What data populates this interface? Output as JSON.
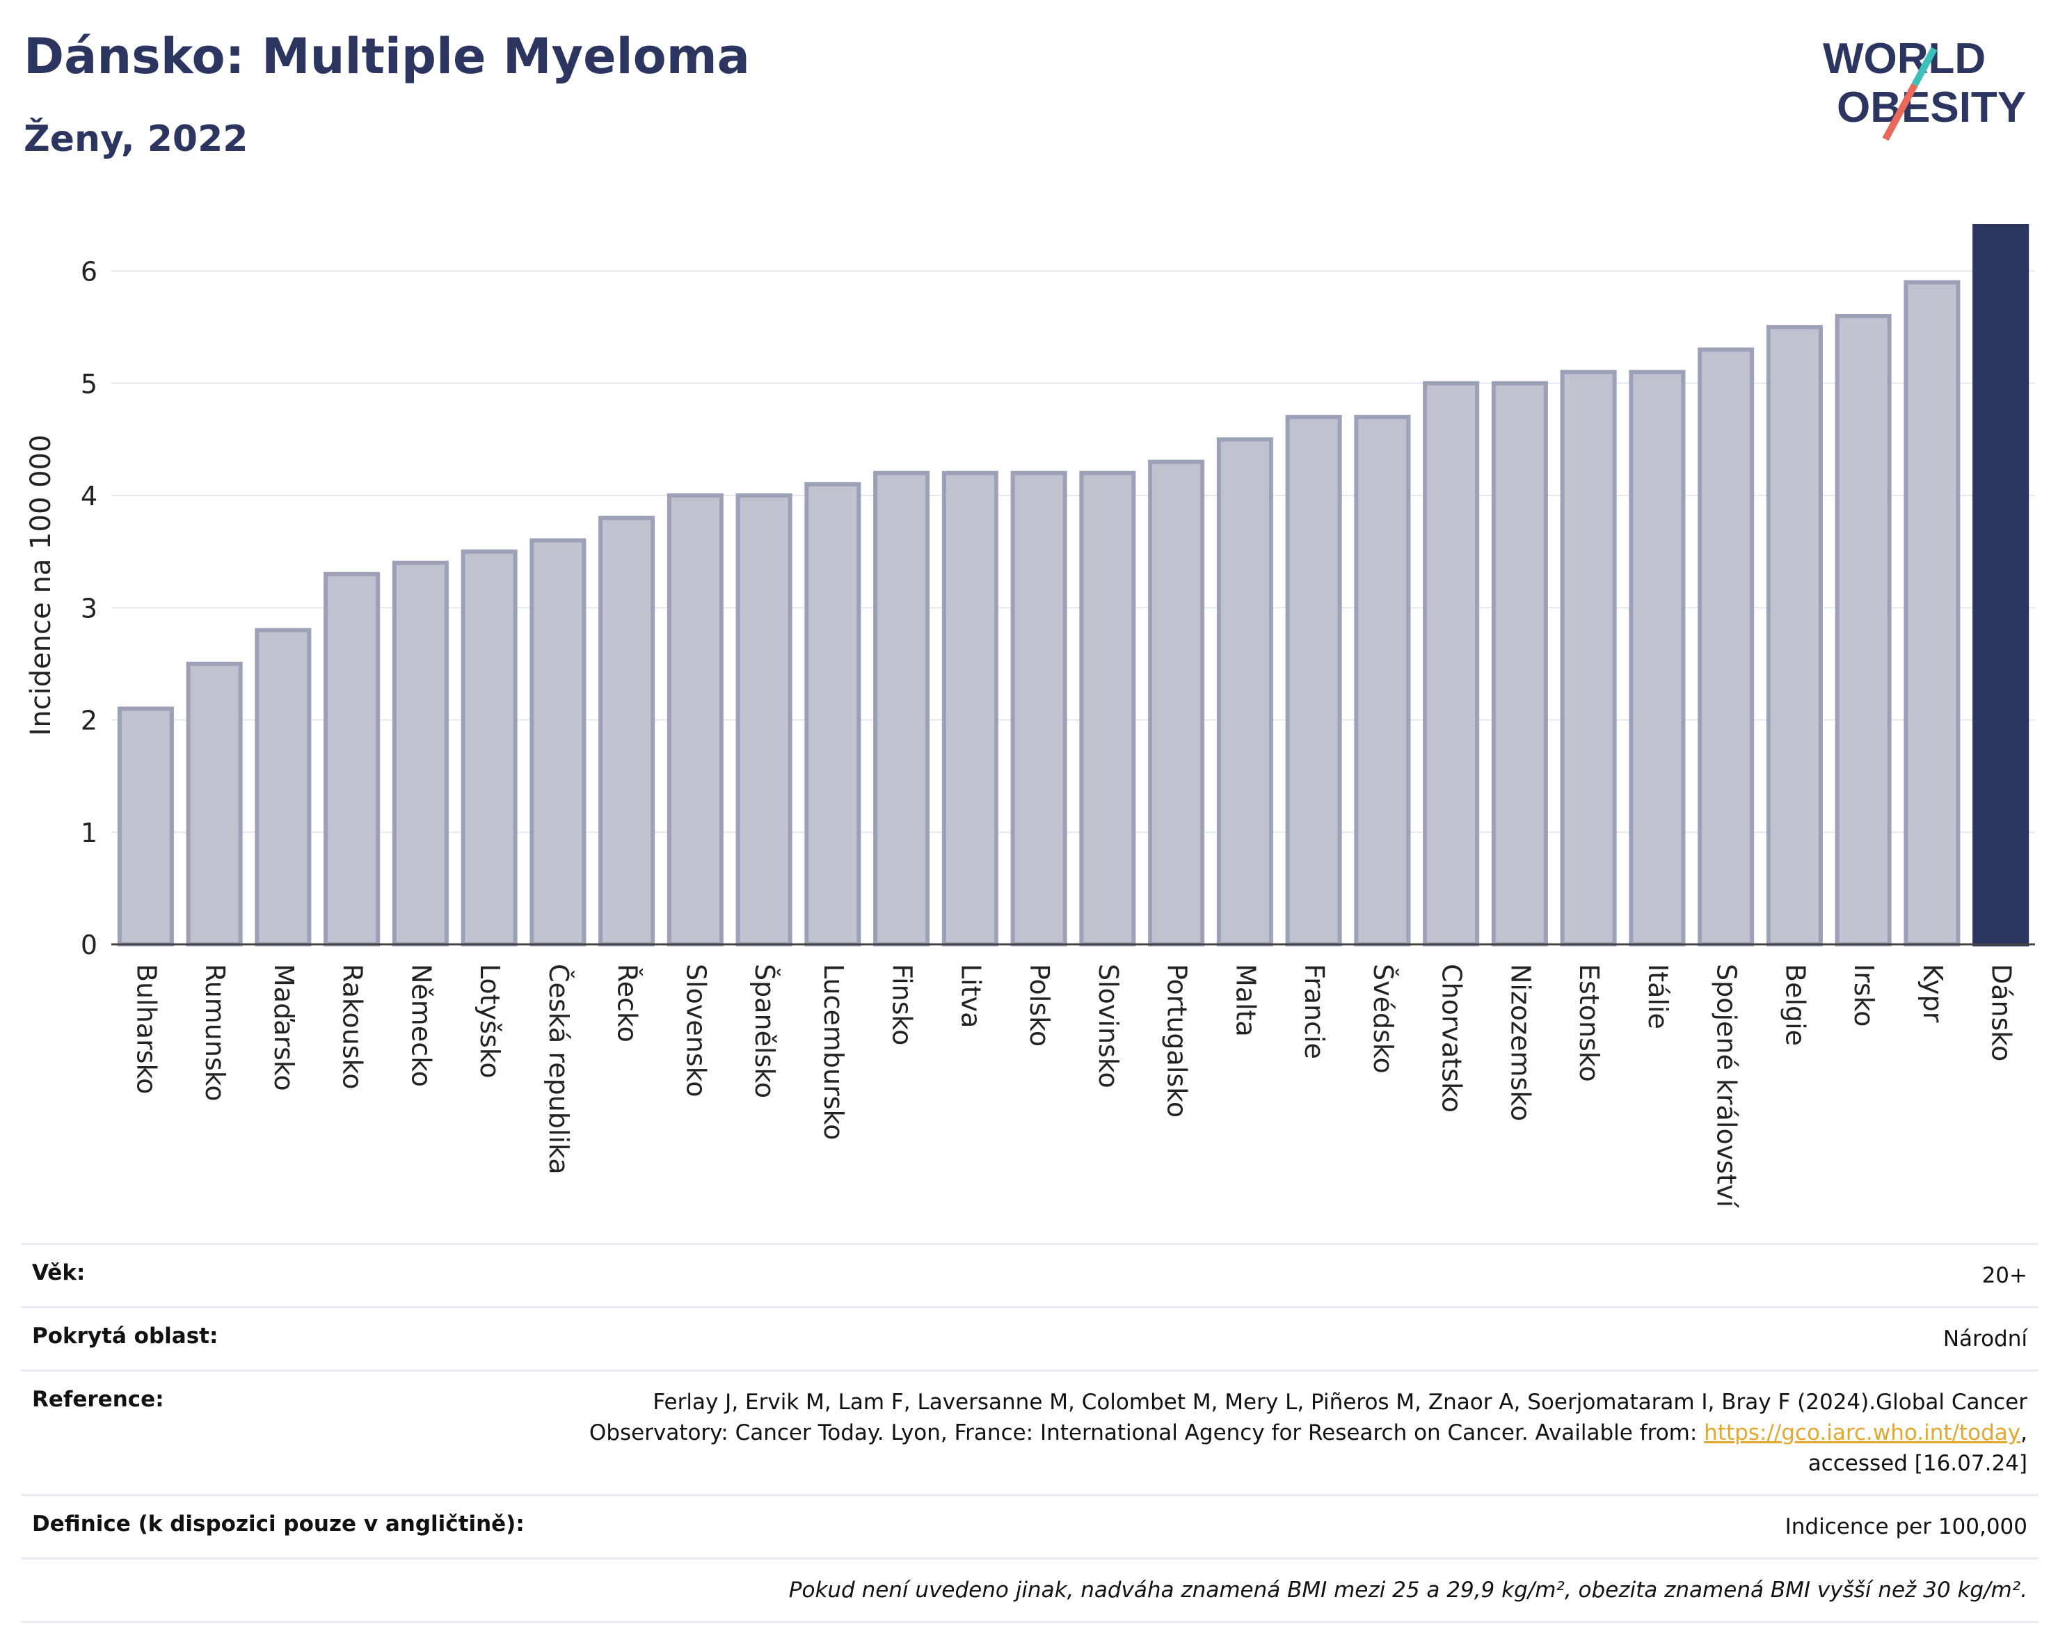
{
  "header": {
    "title": "Dánsko: Multiple Myeloma",
    "subtitle": "Ženy, 2022"
  },
  "logo": {
    "line1": "WORLD",
    "line2": "OBESITY"
  },
  "colors": {
    "bar": "#bfc2cf",
    "bar_border": "#9da1b8",
    "highlight": "#2b3560",
    "text": "#2b3560",
    "link": "#e3a72f"
  },
  "chart_data": {
    "type": "bar",
    "ylabel": "Incidence na 100 000",
    "xlabel": "",
    "ylim": [
      0,
      6.4
    ],
    "yticks": [
      0,
      1,
      2,
      3,
      4,
      5,
      6
    ],
    "grid": true,
    "highlight": "Dánsko",
    "categories": [
      "Bulharsko",
      "Rumunsko",
      "Maďarsko",
      "Rakousko",
      "Německo",
      "Lotyšsko",
      "Česká republika",
      "Řecko",
      "Slovensko",
      "Španělsko",
      "Lucembursko",
      "Finsko",
      "Litva",
      "Polsko",
      "Slovinsko",
      "Portugalsko",
      "Malta",
      "Francie",
      "Švédsko",
      "Chorvatsko",
      "Nizozemsko",
      "Estonsko",
      "Itálie",
      "Spojené království",
      "Belgie",
      "Irsko",
      "Kypr",
      "Dánsko"
    ],
    "values": [
      2.1,
      2.5,
      2.8,
      3.3,
      3.4,
      3.5,
      3.6,
      3.8,
      4.0,
      4.0,
      4.1,
      4.2,
      4.2,
      4.2,
      4.2,
      4.3,
      4.5,
      4.7,
      4.7,
      5.0,
      5.0,
      5.1,
      5.1,
      5.3,
      5.5,
      5.6,
      5.9,
      6.4
    ]
  },
  "meta": {
    "age_label": "Věk:",
    "age_value": "20+",
    "area_label": "Pokrytá oblast:",
    "area_value": "Národní",
    "ref_label": "Reference:",
    "ref_text_1": "Ferlay J, Ervik M, Lam F, Laversanne M, Colombet M, Mery L, Piñeros M, Znaor A, Soerjomataram I, Bray F (2024).Global Cancer Observatory: Cancer Today. Lyon, France: International Agency for Research on Cancer. Available from: ",
    "ref_link": "https://gco.iarc.who.int/today",
    "ref_text_2": ", accessed [16.07.24]",
    "def_label": "Definice (k dispozici pouze v angličtině):",
    "def_value": "Indicence per 100,000",
    "note": "Pokud není uvedeno jinak, nadváha znamená BMI mezi 25 a 29,9 kg/m², obezita znamená BMI vyšší než 30 kg/m²."
  }
}
